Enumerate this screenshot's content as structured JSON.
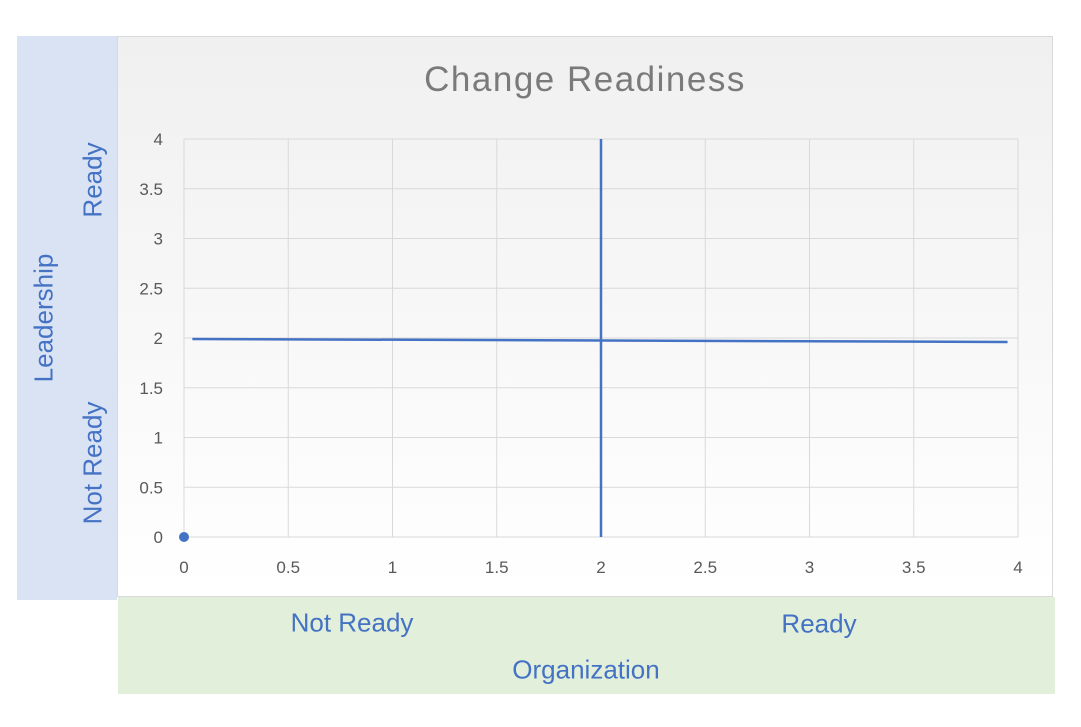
{
  "chart_data": {
    "type": "scatter",
    "title": "Change Readiness",
    "xlim": [
      0,
      4
    ],
    "ylim": [
      0,
      4
    ],
    "xticks": [
      "0",
      "0.5",
      "1",
      "1.5",
      "2",
      "2.5",
      "3",
      "3.5",
      "4"
    ],
    "yticks": [
      "0",
      "0.5",
      "1",
      "1.5",
      "2",
      "2.5",
      "3",
      "3.5",
      "4"
    ],
    "grid": true,
    "series": [
      {
        "points": [
          {
            "x": 0,
            "y": 0
          }
        ],
        "color": "#4472c4"
      }
    ],
    "reference_lines": [
      {
        "orientation": "vertical",
        "x": 2,
        "y": [
          0,
          4
        ],
        "color": "#4472c4"
      },
      {
        "orientation": "horizontal",
        "x": [
          0.04,
          3.95
        ],
        "y": [
          1.99,
          1.96
        ],
        "color": "#4472c4"
      }
    ]
  },
  "labels": {
    "y_axis": "Leadership",
    "y_ready": "Ready",
    "y_not_ready": "Not Ready",
    "x_axis": "Organization",
    "x_not_ready": "Not Ready",
    "x_ready": "Ready"
  },
  "colors": {
    "accent": "#4472c4",
    "left_panel": "#dae3f3",
    "bottom_panel": "#e2efda",
    "grid": "#d9d9d9",
    "tick_text": "#595959",
    "title_text": "#7a7a7a"
  }
}
